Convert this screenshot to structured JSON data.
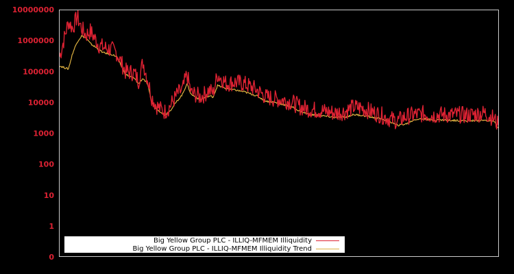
{
  "chart_data": {
    "type": "line",
    "title": "",
    "xlabel": "",
    "ylabel": "",
    "yscale": "log",
    "ylim": [
      0.1,
      10000000
    ],
    "yticks": [
      "10000000",
      "1000000",
      "100000",
      "10000",
      "1000",
      "100",
      "10",
      "1",
      "0"
    ],
    "grid": false,
    "legend_position": "lower-left",
    "legend": [
      "Big Yellow Group PLC - ILLIQ-MFMEM Illiquidity",
      "Big Yellow Group PLC - ILLIQ-MFMEM Illiquidity Trend"
    ],
    "colors": {
      "illiquidity": "#dd2233",
      "trend": "#ddb040",
      "axis": "#cccccc",
      "tick_label": "#dd2233",
      "background": "#000000"
    },
    "note": "x is relative position across plot (0-100%), values are approximate readings on the log scale",
    "x": [
      0,
      2,
      3,
      4,
      5,
      6,
      7,
      9,
      10,
      12,
      13,
      15,
      17,
      18,
      19,
      20,
      21,
      22,
      23,
      24,
      25,
      27,
      28,
      29,
      30,
      31,
      32,
      33,
      34,
      35,
      36,
      38,
      40,
      42,
      44,
      45,
      47,
      49,
      51,
      53,
      55,
      57,
      59,
      61,
      63,
      65,
      67,
      69,
      71,
      73,
      75,
      77,
      79,
      81,
      83,
      85,
      87,
      89,
      91,
      93,
      95,
      97,
      99,
      100
    ],
    "series": [
      {
        "name": "Big Yellow Group PLC - ILLIQ-MFMEM Illiquidity",
        "values": [
          300000,
          4000000,
          2500000,
          6000000,
          2500000,
          1500000,
          2000000,
          700000,
          600000,
          500000,
          400000,
          100000,
          90000,
          50000,
          200000,
          60000,
          15000,
          8000,
          6000,
          5000,
          7000,
          20000,
          25000,
          80000,
          20000,
          18000,
          15000,
          18000,
          25000,
          20000,
          80000,
          40000,
          45000,
          40000,
          30000,
          25000,
          15000,
          13000,
          12000,
          10000,
          7000,
          6000,
          5500,
          5000,
          4500,
          5000,
          7000,
          6500,
          5000,
          4000,
          3000,
          2500,
          3500,
          4000,
          4200,
          3800,
          4000,
          3900,
          4000,
          3800,
          4200,
          4500,
          3000,
          1800
        ]
      },
      {
        "name": "Big Yellow Group PLC - ILLIQ-MFMEM Illiquidity Trend",
        "values": [
          150000,
          120000,
          400000,
          900000,
          1400000,
          1200000,
          800000,
          500000,
          400000,
          350000,
          300000,
          80000,
          60000,
          40000,
          60000,
          40000,
          10000,
          6000,
          5000,
          4000,
          5000,
          12000,
          18000,
          40000,
          18000,
          15000,
          12000,
          14000,
          16000,
          15000,
          35000,
          28000,
          25000,
          22000,
          18000,
          16000,
          11000,
          10000,
          8500,
          7000,
          5000,
          4000,
          3800,
          3500,
          3200,
          3300,
          4000,
          3800,
          3300,
          3000,
          2500,
          1800,
          2000,
          2800,
          2900,
          2700,
          2700,
          2600,
          2600,
          2500,
          2600,
          2600,
          2400,
          1500
        ]
      }
    ]
  }
}
